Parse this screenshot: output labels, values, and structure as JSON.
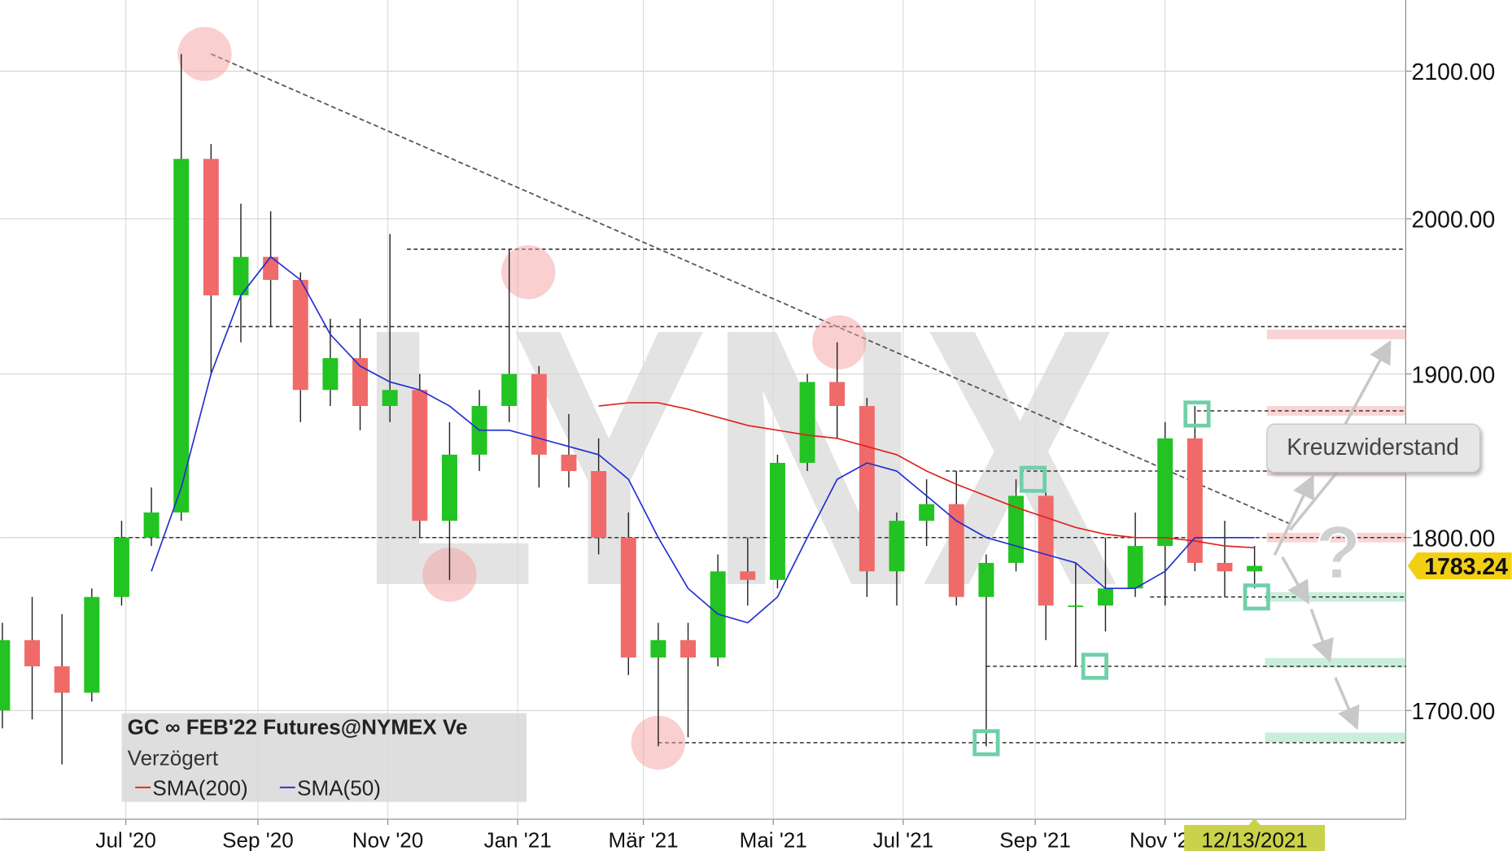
{
  "chart_data": {
    "type": "candlestick",
    "title": "GC ∞ FEB'22 Futures@NYMEX Ve",
    "subtitle": "Verzögert",
    "watermark": "LYNX",
    "x": [
      "2020-05-04",
      "2020-05-18",
      "2020-06-01",
      "2020-06-15",
      "2020-06-29",
      "2020-07-13",
      "2020-07-27",
      "2020-08-10",
      "2020-08-24",
      "2020-09-07",
      "2020-09-21",
      "2020-10-05",
      "2020-10-19",
      "2020-11-02",
      "2020-11-16",
      "2020-11-30",
      "2020-12-14",
      "2020-12-28",
      "2021-01-11",
      "2021-01-25",
      "2021-02-08",
      "2021-02-22",
      "2021-03-08",
      "2021-03-22",
      "2021-04-05",
      "2021-04-19",
      "2021-05-03",
      "2021-05-17",
      "2021-05-31",
      "2021-06-14",
      "2021-06-28",
      "2021-07-12",
      "2021-07-26",
      "2021-08-09",
      "2021-08-23",
      "2021-09-06",
      "2021-09-20",
      "2021-10-04",
      "2021-10-18",
      "2021-11-01",
      "2021-11-15",
      "2021-11-29",
      "2021-12-13"
    ],
    "open": [
      1700,
      1740,
      1725,
      1710,
      1765,
      1800,
      1815,
      2040,
      1950,
      1975,
      1960,
      1890,
      1910,
      1880,
      1890,
      1810,
      1850,
      1880,
      1900,
      1850,
      1840,
      1800,
      1730,
      1740,
      1730,
      1780,
      1775,
      1845,
      1895,
      1880,
      1780,
      1810,
      1820,
      1765,
      1785,
      1825,
      1760,
      1760,
      1770,
      1795,
      1860,
      1785,
      1780
    ],
    "high": [
      1750,
      1765,
      1755,
      1770,
      1810,
      1830,
      2112,
      2050,
      2010,
      2005,
      1965,
      1935,
      1935,
      1990,
      1900,
      1870,
      1890,
      1980,
      1905,
      1875,
      1860,
      1815,
      1750,
      1750,
      1790,
      1800,
      1850,
      1900,
      1920,
      1885,
      1815,
      1835,
      1840,
      1790,
      1835,
      1835,
      1785,
      1800,
      1815,
      1870,
      1880,
      1810,
      1795
    ],
    "low": [
      1690,
      1695,
      1670,
      1705,
      1760,
      1795,
      1810,
      1900,
      1920,
      1930,
      1870,
      1880,
      1865,
      1870,
      1800,
      1775,
      1840,
      1870,
      1830,
      1830,
      1790,
      1720,
      1680,
      1685,
      1725,
      1760,
      1770,
      1840,
      1860,
      1765,
      1760,
      1795,
      1760,
      1680,
      1780,
      1740,
      1725,
      1745,
      1765,
      1760,
      1780,
      1765,
      1770
    ],
    "close": [
      1740,
      1725,
      1710,
      1765,
      1800,
      1815,
      2040,
      1950,
      1975,
      1960,
      1890,
      1910,
      1880,
      1890,
      1810,
      1850,
      1880,
      1900,
      1850,
      1840,
      1800,
      1730,
      1740,
      1730,
      1780,
      1775,
      1845,
      1895,
      1880,
      1780,
      1810,
      1820,
      1765,
      1785,
      1825,
      1760,
      1760,
      1770,
      1795,
      1860,
      1785,
      1780,
      1783.24
    ],
    "up_color": "#22c322",
    "down_color": "#f06a6a",
    "series": [
      {
        "name": "SMA(200)",
        "color": "#e02020",
        "values": [
          null,
          null,
          null,
          null,
          null,
          null,
          null,
          null,
          null,
          null,
          null,
          null,
          null,
          null,
          null,
          null,
          null,
          null,
          null,
          null,
          1880,
          1882,
          1882,
          1878,
          1873,
          1868,
          1865,
          1862,
          1860,
          1855,
          1850,
          1840,
          1832,
          1825,
          1818,
          1812,
          1806,
          1802,
          1800,
          1800,
          1798,
          1795,
          1794
        ]
      },
      {
        "name": "SMA(50)",
        "color": "#1f2fd0",
        "values": [
          null,
          null,
          null,
          null,
          null,
          1780,
          1830,
          1900,
          1950,
          1975,
          1960,
          1925,
          1905,
          1895,
          1890,
          1880,
          1865,
          1865,
          1860,
          1855,
          1850,
          1835,
          1800,
          1770,
          1755,
          1750,
          1765,
          1800,
          1835,
          1845,
          1840,
          1825,
          1810,
          1800,
          1795,
          1790,
          1785,
          1770,
          1770,
          1780,
          1800,
          1800,
          1800
        ]
      }
    ],
    "xlim": [
      "2020-05-03",
      "2022-02-22"
    ],
    "xticks": [
      {
        "value": "2020-07-01",
        "label": "Jul '20"
      },
      {
        "value": "2020-09-01",
        "label": "Sep '20"
      },
      {
        "value": "2020-11-01",
        "label": "Nov '20"
      },
      {
        "value": "2021-01-01",
        "label": "Jan '21"
      },
      {
        "value": "2021-03-01",
        "label": "Mär '21"
      },
      {
        "value": "2021-05-01",
        "label": "Mai '21"
      },
      {
        "value": "2021-07-01",
        "label": "Jul '21"
      },
      {
        "value": "2021-09-01",
        "label": "Sep '21"
      },
      {
        "value": "2021-11-01",
        "label": "Nov '21"
      }
    ],
    "ylim": [
      1640,
      2150
    ],
    "yticks": [
      {
        "value": 1700,
        "label": "1700.00"
      },
      {
        "value": 1800,
        "label": "1800.00"
      },
      {
        "value": 1900,
        "label": "1900.00"
      },
      {
        "value": 2000,
        "label": "2000.00"
      },
      {
        "value": 2100,
        "label": "2100.00"
      }
    ],
    "log_scale": true,
    "grid": true,
    "cursor": {
      "value": "2021-12-13",
      "label": "12/13/2021"
    },
    "trendline": {
      "x": [
        "2020-08-10",
        "2021-12-30"
      ],
      "y": [
        2112,
        1808
      ]
    },
    "levels": [
      {
        "x": "2020-11-10",
        "y": 1980
      },
      {
        "x": "2020-08-15",
        "y": 1930
      },
      {
        "x": "2021-11-16",
        "y": 1877
      },
      {
        "x": "2021-07-21",
        "y": 1840
      },
      {
        "x": "2020-06-26",
        "y": 1800
      },
      {
        "x": "2021-10-25",
        "y": 1765
      },
      {
        "x": "2021-08-09",
        "y": 1725
      },
      {
        "x": "2021-03-08",
        "y": 1682
      }
    ],
    "circles": [
      {
        "x": "2020-08-07",
        "y": 2112
      },
      {
        "x": "2020-11-30",
        "y": 1778
      },
      {
        "x": "2021-01-06",
        "y": 1965
      },
      {
        "x": "2021-03-08",
        "y": 1682
      },
      {
        "x": "2021-06-01",
        "y": 1920
      }
    ],
    "squares": [
      {
        "x": "2021-08-09",
        "y": 1682
      },
      {
        "x": "2021-08-31",
        "y": 1835
      },
      {
        "x": "2021-09-29",
        "y": 1725
      },
      {
        "x": "2021-11-16",
        "y": 1875
      },
      {
        "x": "2021-12-14",
        "y": 1765
      }
    ],
    "resistance_zones": [
      1925,
      1877,
      1840,
      1800
    ],
    "support_zones": [
      1765,
      1727,
      1685
    ],
    "annotation": "Kreuzwiderstand",
    "question": "?"
  }
}
